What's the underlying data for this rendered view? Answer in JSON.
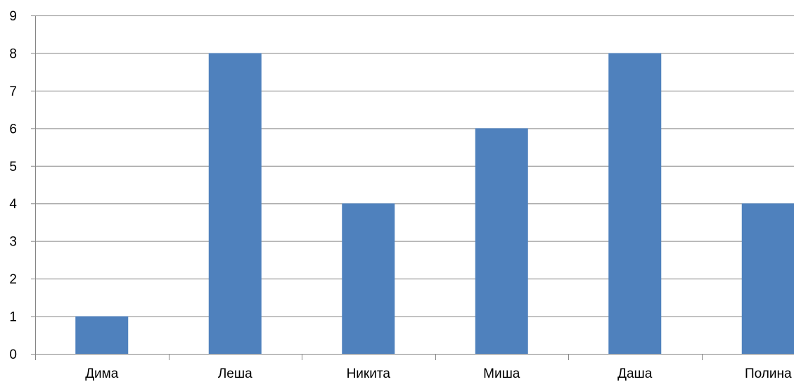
{
  "chart_data": {
    "type": "bar",
    "categories": [
      "Дима",
      "Леша",
      "Никита",
      "Миша",
      "Даша",
      "Полина"
    ],
    "values": [
      1,
      8,
      4,
      6,
      8,
      4
    ],
    "title": "",
    "xlabel": "",
    "ylabel": "",
    "ylim": [
      0,
      9
    ],
    "yticks": [
      "0",
      "1",
      "2",
      "3",
      "4",
      "5",
      "6",
      "7",
      "8",
      "9"
    ],
    "grid": true,
    "legend": "none",
    "bar_color": "#4F81BD",
    "grid_color": "#868686",
    "axis_color": "#868686"
  }
}
